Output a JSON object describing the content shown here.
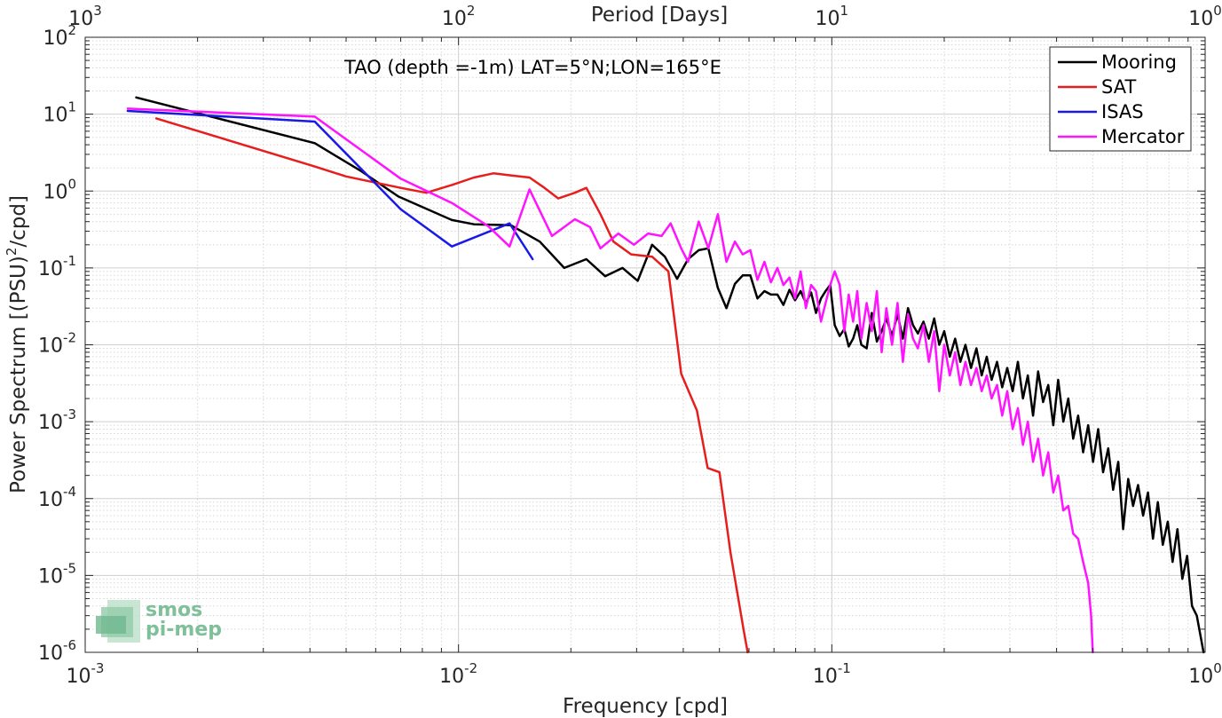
{
  "chart_data": {
    "type": "line",
    "title": "",
    "annotation": "TAO (depth =-1m) LAT=5°N;LON=165°E",
    "xlabel": "Frequency [cpd]",
    "ylabel": "Power Spectrum [(PSU)^2/cpd]",
    "ylabel_parts": {
      "before": "Power Spectrum [(PSU)",
      "sup": "2",
      "after": "/cpd]"
    },
    "top_xlabel": "Period [Days]",
    "xscale": "log",
    "yscale": "log",
    "xlim": [
      0.001,
      1
    ],
    "ylim": [
      1e-06,
      100
    ],
    "grid": true,
    "legend_position": "top-right",
    "x_ticks": [
      {
        "value": 0.001,
        "base": "10",
        "exp": "-3"
      },
      {
        "value": 0.01,
        "base": "10",
        "exp": "-2"
      },
      {
        "value": 0.1,
        "base": "10",
        "exp": "-1"
      },
      {
        "value": 1,
        "base": "10",
        "exp": "0"
      }
    ],
    "y_ticks": [
      {
        "value": 1e-06,
        "base": "10",
        "exp": "-6"
      },
      {
        "value": 1e-05,
        "base": "10",
        "exp": "-5"
      },
      {
        "value": 0.0001,
        "base": "10",
        "exp": "-4"
      },
      {
        "value": 0.001,
        "base": "10",
        "exp": "-3"
      },
      {
        "value": 0.01,
        "base": "10",
        "exp": "-2"
      },
      {
        "value": 0.1,
        "base": "10",
        "exp": "-1"
      },
      {
        "value": 1,
        "base": "10",
        "exp": "0"
      },
      {
        "value": 10,
        "base": "10",
        "exp": "1"
      },
      {
        "value": 100,
        "base": "10",
        "exp": "2"
      }
    ],
    "top_ticks": [
      {
        "period": 1000,
        "base": "10",
        "exp": "3"
      },
      {
        "period": 100,
        "base": "10",
        "exp": "2"
      },
      {
        "period": 10,
        "base": "10",
        "exp": "1"
      },
      {
        "period": 1,
        "base": "10",
        "exp": "0"
      }
    ],
    "series": [
      {
        "name": "Mooring",
        "color": "#000000",
        "points": [
          [
            0.00137,
            16.5
          ],
          [
            0.00412,
            4.2
          ],
          [
            0.0055,
            1.8
          ],
          [
            0.0069,
            0.85
          ],
          [
            0.0096,
            0.42
          ],
          [
            0.011,
            0.37
          ],
          [
            0.0138,
            0.36
          ],
          [
            0.0165,
            0.22
          ],
          [
            0.0192,
            0.1
          ],
          [
            0.022,
            0.13
          ],
          [
            0.0247,
            0.078
          ],
          [
            0.0275,
            0.1
          ],
          [
            0.0302,
            0.068
          ],
          [
            0.033,
            0.2
          ],
          [
            0.0357,
            0.14
          ],
          [
            0.0385,
            0.072
          ],
          [
            0.0412,
            0.13
          ],
          [
            0.044,
            0.17
          ],
          [
            0.0467,
            0.18
          ],
          [
            0.0495,
            0.055
          ],
          [
            0.0522,
            0.03
          ],
          [
            0.055,
            0.062
          ],
          [
            0.0577,
            0.08
          ],
          [
            0.0605,
            0.08
          ],
          [
            0.0632,
            0.04
          ],
          [
            0.066,
            0.05
          ],
          [
            0.0687,
            0.045
          ],
          [
            0.0715,
            0.045
          ],
          [
            0.0742,
            0.033
          ],
          [
            0.077,
            0.052
          ],
          [
            0.0797,
            0.038
          ],
          [
            0.0825,
            0.05
          ],
          [
            0.0852,
            0.035
          ],
          [
            0.088,
            0.048
          ],
          [
            0.0907,
            0.026
          ],
          [
            0.0935,
            0.04
          ],
          [
            0.0962,
            0.05
          ],
          [
            0.099,
            0.06
          ],
          [
            0.1018,
            0.018
          ],
          [
            0.105,
            0.013
          ],
          [
            0.108,
            0.016
          ],
          [
            0.111,
            0.0095
          ],
          [
            0.114,
            0.012
          ],
          [
            0.117,
            0.018
          ],
          [
            0.12,
            0.01
          ],
          [
            0.124,
            0.009
          ],
          [
            0.128,
            0.026
          ],
          [
            0.132,
            0.011
          ],
          [
            0.136,
            0.015
          ],
          [
            0.14,
            0.022
          ],
          [
            0.145,
            0.013
          ],
          [
            0.15,
            0.025
          ],
          [
            0.155,
            0.012
          ],
          [
            0.16,
            0.03
          ],
          [
            0.165,
            0.018
          ],
          [
            0.17,
            0.014
          ],
          [
            0.176,
            0.02
          ],
          [
            0.182,
            0.012
          ],
          [
            0.188,
            0.022
          ],
          [
            0.194,
            0.01
          ],
          [
            0.2,
            0.015
          ],
          [
            0.207,
            0.007
          ],
          [
            0.214,
            0.012
          ],
          [
            0.221,
            0.006
          ],
          [
            0.228,
            0.01
          ],
          [
            0.236,
            0.005
          ],
          [
            0.244,
            0.009
          ],
          [
            0.252,
            0.004
          ],
          [
            0.26,
            0.007
          ],
          [
            0.268,
            0.0035
          ],
          [
            0.277,
            0.006
          ],
          [
            0.286,
            0.0028
          ],
          [
            0.295,
            0.005
          ],
          [
            0.305,
            0.0025
          ],
          [
            0.315,
            0.006
          ],
          [
            0.325,
            0.002
          ],
          [
            0.335,
            0.004
          ],
          [
            0.346,
            0.0012
          ],
          [
            0.357,
            0.0045
          ],
          [
            0.368,
            0.0018
          ],
          [
            0.38,
            0.003
          ],
          [
            0.392,
            0.0009
          ],
          [
            0.404,
            0.0035
          ],
          [
            0.417,
            0.001
          ],
          [
            0.43,
            0.002
          ],
          [
            0.443,
            0.0006
          ],
          [
            0.457,
            0.0012
          ],
          [
            0.471,
            0.0004
          ],
          [
            0.486,
            0.0009
          ],
          [
            0.501,
            0.0003
          ],
          [
            0.517,
            0.0008
          ],
          [
            0.533,
            0.00022
          ],
          [
            0.55,
            0.00045
          ],
          [
            0.567,
            0.00013
          ],
          [
            0.585,
            0.0003
          ],
          [
            0.603,
            4e-05
          ],
          [
            0.622,
            0.00018
          ],
          [
            0.641,
            8e-05
          ],
          [
            0.661,
            0.00015
          ],
          [
            0.682,
            6e-05
          ],
          [
            0.703,
            0.00012
          ],
          [
            0.725,
            3e-05
          ],
          [
            0.747,
            9e-05
          ],
          [
            0.77,
            2.5e-05
          ],
          [
            0.794,
            5e-05
          ],
          [
            0.818,
            1.5e-05
          ],
          [
            0.843,
            4e-05
          ],
          [
            0.869,
            9e-06
          ],
          [
            0.895,
            1.8e-05
          ],
          [
            0.922,
            4e-06
          ],
          [
            0.95,
            3e-06
          ],
          [
            0.975,
            1.5e-06
          ],
          [
            0.99,
            1e-06
          ]
        ]
      },
      {
        "name": "SAT",
        "color": "#e61e1e",
        "points": [
          [
            0.00155,
            8.8
          ],
          [
            0.0041,
            2.1
          ],
          [
            0.005,
            1.55
          ],
          [
            0.007,
            1.1
          ],
          [
            0.0082,
            0.95
          ],
          [
            0.0096,
            1.2
          ],
          [
            0.011,
            1.5
          ],
          [
            0.0124,
            1.7
          ],
          [
            0.0138,
            1.6
          ],
          [
            0.0155,
            1.5
          ],
          [
            0.017,
            1.1
          ],
          [
            0.0185,
            0.8
          ],
          [
            0.0205,
            0.95
          ],
          [
            0.022,
            1.1
          ],
          [
            0.024,
            0.5
          ],
          [
            0.026,
            0.22
          ],
          [
            0.029,
            0.15
          ],
          [
            0.033,
            0.14
          ],
          [
            0.0365,
            0.09
          ],
          [
            0.0395,
            0.0042
          ],
          [
            0.0435,
            0.0014
          ],
          [
            0.0465,
            0.00025
          ],
          [
            0.05,
            0.00022
          ],
          [
            0.0535,
            2e-05
          ],
          [
            0.058,
            2e-06
          ],
          [
            0.0595,
            1e-06
          ]
        ]
      },
      {
        "name": "ISAS",
        "color": "#1a1ae6",
        "points": [
          [
            0.0013,
            11.0
          ],
          [
            0.00412,
            8.0
          ],
          [
            0.007,
            0.58
          ],
          [
            0.0096,
            0.19
          ],
          [
            0.0137,
            0.38
          ],
          [
            0.0158,
            0.13
          ]
        ]
      },
      {
        "name": "Mercator",
        "color": "#ff14ff",
        "points": [
          [
            0.0013,
            11.8
          ],
          [
            0.00412,
            9.3
          ],
          [
            0.007,
            1.45
          ],
          [
            0.0096,
            0.7
          ],
          [
            0.012,
            0.35
          ],
          [
            0.0137,
            0.19
          ],
          [
            0.0155,
            1.05
          ],
          [
            0.0178,
            0.26
          ],
          [
            0.0205,
            0.43
          ],
          [
            0.0225,
            0.34
          ],
          [
            0.024,
            0.18
          ],
          [
            0.0268,
            0.28
          ],
          [
            0.0295,
            0.2
          ],
          [
            0.0322,
            0.28
          ],
          [
            0.035,
            0.26
          ],
          [
            0.037,
            0.38
          ],
          [
            0.0395,
            0.18
          ],
          [
            0.0412,
            0.12
          ],
          [
            0.044,
            0.4
          ],
          [
            0.0467,
            0.18
          ],
          [
            0.0495,
            0.5
          ],
          [
            0.0522,
            0.12
          ],
          [
            0.055,
            0.22
          ],
          [
            0.0577,
            0.15
          ],
          [
            0.0605,
            0.17
          ],
          [
            0.0632,
            0.07
          ],
          [
            0.066,
            0.12
          ],
          [
            0.0687,
            0.065
          ],
          [
            0.0715,
            0.1
          ],
          [
            0.0742,
            0.06
          ],
          [
            0.077,
            0.075
          ],
          [
            0.0797,
            0.04
          ],
          [
            0.0825,
            0.09
          ],
          [
            0.0852,
            0.03
          ],
          [
            0.088,
            0.06
          ],
          [
            0.0907,
            0.05
          ],
          [
            0.0935,
            0.02
          ],
          [
            0.0962,
            0.035
          ],
          [
            0.099,
            0.06
          ],
          [
            0.1018,
            0.09
          ],
          [
            0.105,
            0.06
          ],
          [
            0.108,
            0.015
          ],
          [
            0.111,
            0.045
          ],
          [
            0.114,
            0.02
          ],
          [
            0.117,
            0.05
          ],
          [
            0.12,
            0.012
          ],
          [
            0.124,
            0.035
          ],
          [
            0.128,
            0.015
          ],
          [
            0.132,
            0.05
          ],
          [
            0.136,
            0.008
          ],
          [
            0.14,
            0.03
          ],
          [
            0.145,
            0.01
          ],
          [
            0.15,
            0.035
          ],
          [
            0.155,
            0.006
          ],
          [
            0.16,
            0.025
          ],
          [
            0.165,
            0.012
          ],
          [
            0.17,
            0.009
          ],
          [
            0.176,
            0.018
          ],
          [
            0.182,
            0.006
          ],
          [
            0.188,
            0.015
          ],
          [
            0.194,
            0.0025
          ],
          [
            0.2,
            0.01
          ],
          [
            0.207,
            0.004
          ],
          [
            0.214,
            0.008
          ],
          [
            0.221,
            0.003
          ],
          [
            0.228,
            0.006
          ],
          [
            0.236,
            0.003
          ],
          [
            0.244,
            0.005
          ],
          [
            0.252,
            0.0025
          ],
          [
            0.26,
            0.004
          ],
          [
            0.268,
            0.002
          ],
          [
            0.277,
            0.003
          ],
          [
            0.286,
            0.0012
          ],
          [
            0.295,
            0.0025
          ],
          [
            0.305,
            0.0008
          ],
          [
            0.315,
            0.0015
          ],
          [
            0.325,
            0.0005
          ],
          [
            0.335,
            0.001
          ],
          [
            0.346,
            0.0003
          ],
          [
            0.357,
            0.0006
          ],
          [
            0.368,
            0.0002
          ],
          [
            0.38,
            0.0004
          ],
          [
            0.392,
            0.00012
          ],
          [
            0.404,
            0.0002
          ],
          [
            0.417,
            7e-05
          ],
          [
            0.43,
            8e-05
          ],
          [
            0.443,
            3.5e-05
          ],
          [
            0.457,
            3e-05
          ],
          [
            0.471,
            1.5e-05
          ],
          [
            0.486,
            8e-06
          ],
          [
            0.495,
            3e-06
          ],
          [
            0.5,
            1e-06
          ]
        ]
      }
    ]
  },
  "logo": {
    "line1": "smos",
    "line2": "pi-mep"
  }
}
